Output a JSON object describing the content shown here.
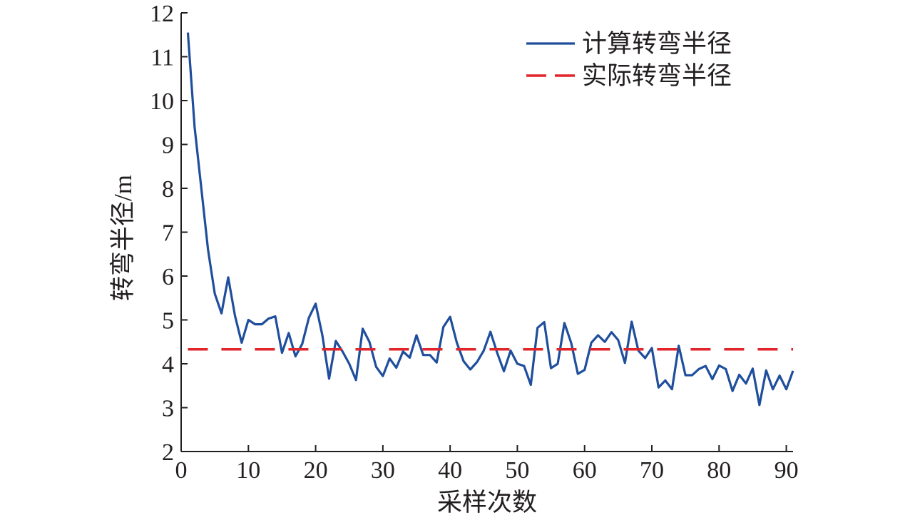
{
  "chart_data": {
    "type": "line",
    "title": "",
    "xlabel": "采样次数",
    "ylabel": "转弯半径/m",
    "xlim": [
      0,
      91
    ],
    "ylim": [
      2,
      12
    ],
    "xticks": [
      0,
      10,
      20,
      30,
      40,
      50,
      60,
      70,
      80,
      90
    ],
    "yticks": [
      2,
      3,
      4,
      5,
      6,
      7,
      8,
      9,
      10,
      11,
      12
    ],
    "grid": false,
    "legend_position": "top-right",
    "series": [
      {
        "name": "计算转弯半径",
        "style": "solid",
        "color": "#1f4e9c",
        "x": [
          1,
          2,
          3,
          4,
          5,
          6,
          7,
          8,
          9,
          10,
          11,
          12,
          13,
          14,
          15,
          16,
          17,
          18,
          19,
          20,
          21,
          22,
          23,
          24,
          25,
          26,
          27,
          28,
          29,
          30,
          31,
          32,
          33,
          34,
          35,
          36,
          37,
          38,
          39,
          40,
          41,
          42,
          43,
          44,
          45,
          46,
          47,
          48,
          49,
          50,
          51,
          52,
          53,
          54,
          55,
          56,
          57,
          58,
          59,
          60,
          61,
          62,
          63,
          64,
          65,
          66,
          67,
          68,
          69,
          70,
          71,
          72,
          73,
          74,
          75,
          76,
          77,
          78,
          79,
          80,
          81,
          82,
          83,
          84,
          85,
          86,
          87,
          88,
          89,
          90,
          91
        ],
        "values": [
          11.55,
          9.4,
          8.0,
          6.6,
          5.6,
          5.15,
          5.97,
          5.1,
          4.48,
          5.0,
          4.9,
          4.9,
          5.03,
          5.08,
          4.25,
          4.7,
          4.17,
          4.45,
          5.05,
          5.37,
          4.65,
          3.66,
          4.52,
          4.28,
          4.0,
          3.63,
          4.8,
          4.5,
          3.93,
          3.72,
          4.12,
          3.91,
          4.28,
          4.14,
          4.65,
          4.2,
          4.2,
          4.03,
          4.84,
          5.07,
          4.48,
          4.06,
          3.87,
          4.04,
          4.3,
          4.73,
          4.25,
          3.83,
          4.3,
          4.0,
          3.95,
          3.52,
          4.82,
          4.95,
          3.9,
          4.0,
          4.93,
          4.48,
          3.77,
          3.86,
          4.48,
          4.65,
          4.5,
          4.72,
          4.54,
          4.02,
          4.96,
          4.3,
          4.13,
          4.36,
          3.46,
          3.62,
          3.42,
          4.41,
          3.74,
          3.74,
          3.88,
          3.95,
          3.65,
          3.96,
          3.88,
          3.38,
          3.75,
          3.55,
          3.89,
          3.06,
          3.85,
          3.42,
          3.73,
          3.42,
          3.84
        ]
      },
      {
        "name": "实际转弯半径",
        "style": "dashed",
        "color": "#e0262a",
        "x": [
          1,
          91
        ],
        "values": [
          4.33,
          4.33
        ]
      }
    ]
  }
}
